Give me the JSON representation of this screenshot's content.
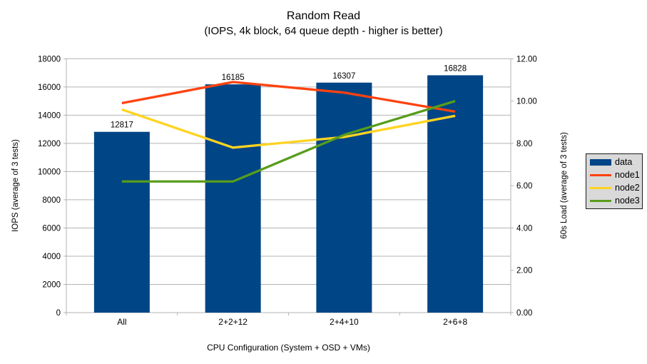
{
  "chart_data": {
    "type": "combo-bar-line",
    "title": "Random Read",
    "subtitle": "(IOPS, 4k block, 64 queue depth - higher is better)",
    "xlabel": "CPU Configuration (System + OSD + VMs)",
    "ylabel_left": "IOPS (average of 3 tests)",
    "ylabel_right": "60s Load (average of 3 tests)",
    "categories": [
      "All",
      "2+2+12",
      "2+4+10",
      "2+6+8"
    ],
    "series": [
      {
        "name": "data",
        "type": "bar",
        "axis": "left",
        "color": "#004586",
        "values": [
          12817,
          16185,
          16307,
          16828
        ],
        "data_labels": [
          "12817",
          "16185",
          "16307",
          "16828"
        ]
      },
      {
        "name": "node1",
        "type": "line",
        "axis": "right",
        "color": "#ff420e",
        "values": [
          9.9,
          10.9,
          10.4,
          9.5
        ]
      },
      {
        "name": "node2",
        "type": "line",
        "axis": "right",
        "color": "#ffd320",
        "values": [
          9.6,
          7.8,
          8.3,
          9.3
        ]
      },
      {
        "name": "node3",
        "type": "line",
        "axis": "right",
        "color": "#579d1c",
        "values": [
          6.2,
          6.2,
          8.4,
          10.0
        ]
      }
    ],
    "axis_left": {
      "min": 0,
      "max": 18000,
      "step": 2000,
      "decimals": 0
    },
    "axis_right": {
      "min": 0,
      "max": 12,
      "step": 2,
      "decimals": 2
    },
    "grid": true,
    "legend_position": "right",
    "colors": {
      "gridline": "#b3b3b3",
      "axis": "#b3b3b3",
      "text": "#000000",
      "legend_bg": "#d9d9d9",
      "legend_border": "#1a1a1a",
      "background": "#ffffff"
    }
  }
}
